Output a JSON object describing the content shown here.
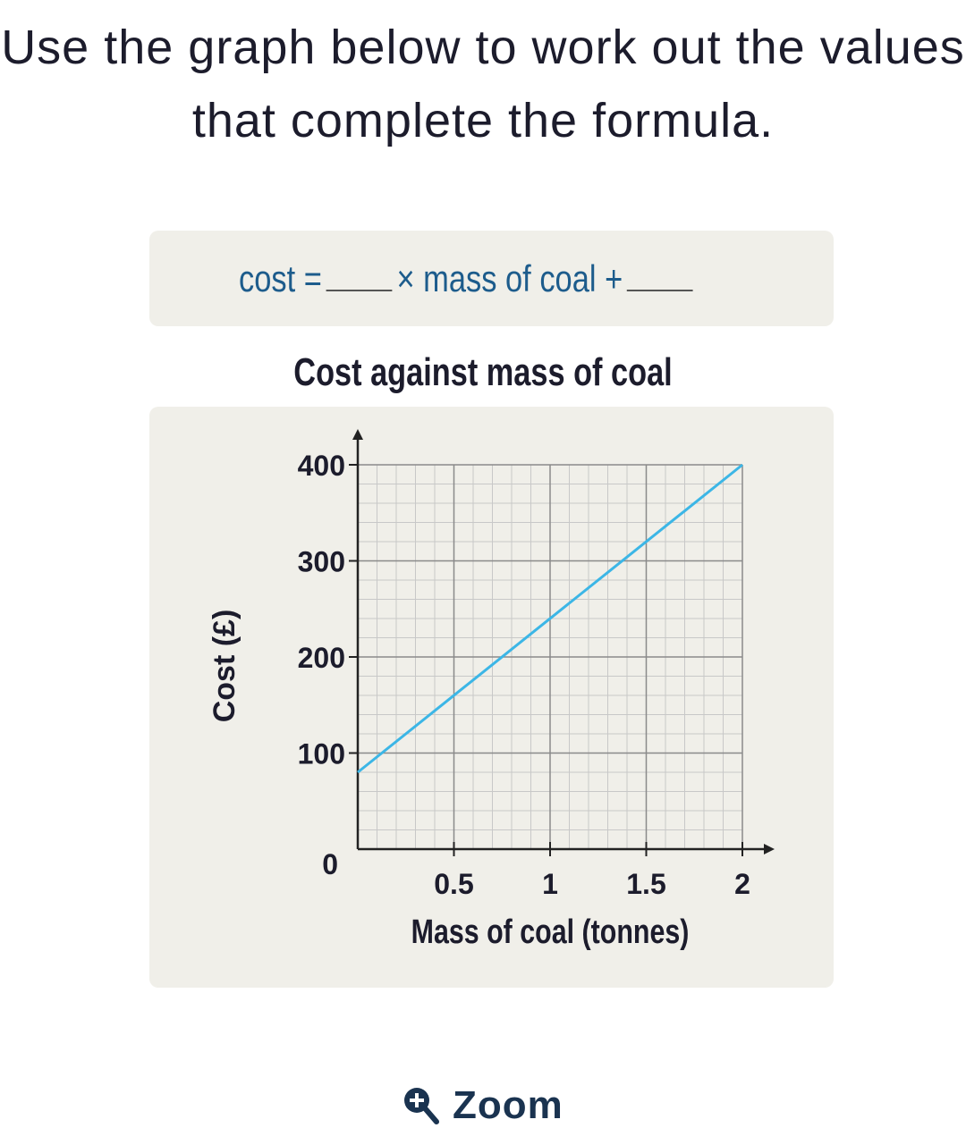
{
  "question": "Use the graph below to work out the values that complete the formula.",
  "formula": {
    "left": "cost =",
    "middle": "× mass of coal +"
  },
  "chart_data": {
    "type": "line",
    "title": "Cost against mass of coal",
    "xlabel": "Mass of coal (tonnes)",
    "ylabel": "Cost (£)",
    "x": [
      0,
      2
    ],
    "values": [
      80,
      400
    ],
    "color": "#3cb6e6",
    "xlim": [
      0,
      2
    ],
    "ylim": [
      0,
      400
    ],
    "xticks": [
      0.5,
      1,
      1.5,
      2
    ],
    "yticks": [
      0,
      100,
      200,
      300,
      400
    ],
    "grid": true,
    "xminor": 0.1,
    "yminor": 20
  },
  "zoom": "Zoom"
}
